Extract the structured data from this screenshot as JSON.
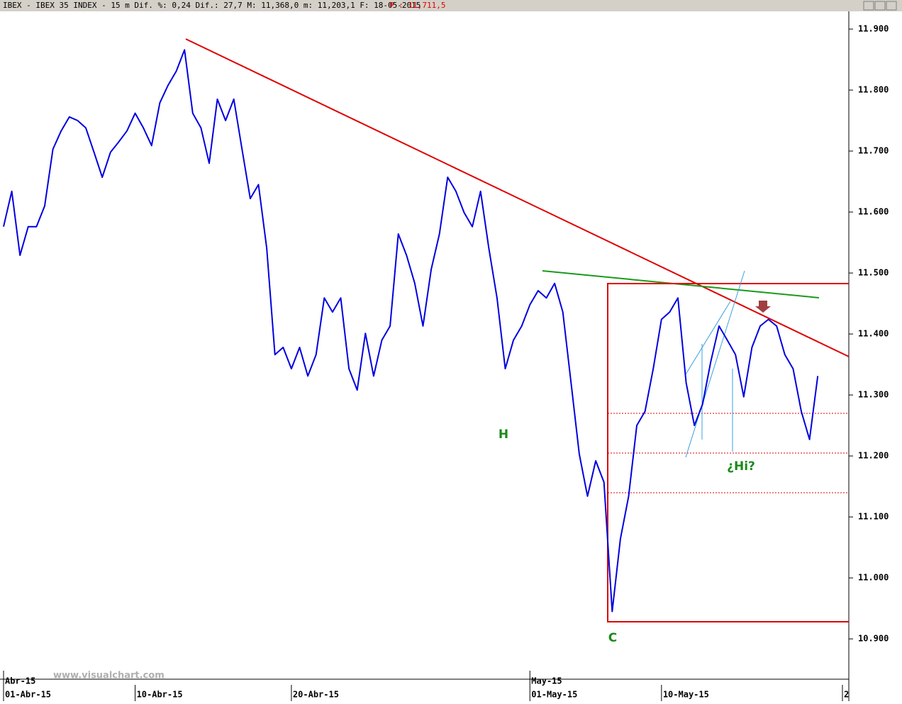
{
  "chart_data": {
    "type": "line",
    "header": "IBEX - IBEX 35 INDEX -  15 m Dif. %: 0,24 Dif.: 27,7 M: 11,368,0 m: 11,203,1 F: 18-05-2015",
    "header_price": "P : 11,711,5",
    "watermark": "www.visualchart.com",
    "annotations": [
      "H",
      "C",
      "¿Hi?"
    ],
    "categories": [
      "01-Abr-15",
      null,
      null,
      null,
      null,
      null,
      null,
      null,
      null,
      null,
      null,
      null,
      null,
      null,
      null,
      null,
      "10-Abr-15",
      null,
      null,
      null,
      null,
      null,
      null,
      null,
      null,
      null,
      null,
      null,
      null,
      null,
      null,
      null,
      null,
      null,
      null,
      "20-Abr-15",
      null,
      null,
      null,
      null,
      null,
      null,
      null,
      null,
      null,
      null,
      null,
      null,
      null,
      null,
      null,
      null,
      null,
      null,
      null,
      null,
      null,
      null,
      null,
      null,
      null,
      null,
      null,
      null,
      "01-May-15",
      null,
      null,
      null,
      null,
      null,
      null,
      null,
      null,
      null,
      null,
      null,
      null,
      null,
      null,
      null,
      "10-May-15",
      null,
      null,
      null,
      null,
      null,
      null,
      null,
      null,
      null,
      null,
      null,
      null,
      null,
      null,
      null,
      null,
      null,
      null,
      null,
      null,
      null,
      "2"
    ],
    "month_labels": [
      "Abr-15",
      null,
      null,
      null,
      null,
      null,
      null,
      null,
      null,
      null,
      null,
      null,
      null,
      null,
      null,
      null,
      null,
      null,
      null,
      null,
      null,
      null,
      null,
      null,
      null,
      null,
      null,
      null,
      null,
      null,
      null,
      null,
      null,
      null,
      null,
      null,
      null,
      null,
      null,
      null,
      null,
      null,
      null,
      null,
      null,
      null,
      null,
      null,
      null,
      null,
      null,
      null,
      null,
      null,
      null,
      null,
      null,
      null,
      null,
      null,
      null,
      null,
      null,
      null,
      "May-15",
      null,
      null,
      null,
      null,
      null,
      null,
      null,
      null,
      null,
      null,
      null,
      null,
      null,
      null,
      null,
      null,
      null,
      null,
      null,
      null,
      null,
      null,
      null,
      null,
      null,
      null,
      null,
      null,
      null,
      null,
      null,
      null,
      null,
      null,
      null,
      null,
      null,
      null
    ],
    "series": [
      {
        "name": "IBEX 35",
        "color": "#0000e0",
        "values": [
          11576,
          11634,
          11529,
          11576,
          11576,
          11610,
          11703,
          11733,
          11756,
          11750,
          11738,
          11698,
          11657,
          11698,
          11715,
          11733,
          11762,
          11738,
          11709,
          11779,
          11808,
          11831,
          11866,
          11762,
          11738,
          11680,
          11785,
          11750,
          11785,
          11703,
          11622,
          11645,
          11541,
          11366,
          11378,
          11343,
          11378,
          11331,
          11366,
          11459,
          11436,
          11459,
          11343,
          11308,
          11401,
          11331,
          11390,
          11413,
          11564,
          11529,
          11483,
          11413,
          11506,
          11564,
          11657,
          11634,
          11599,
          11576,
          11634,
          11541,
          11459,
          11343,
          11390,
          11413,
          11448,
          11471,
          11459,
          11483,
          11436,
          11320,
          11203,
          11134,
          11192,
          11157,
          10945,
          11064,
          11134,
          11250,
          11273,
          11343,
          11424,
          11436,
          11459,
          11320,
          11250,
          11285,
          11355,
          11413,
          11390,
          11366,
          11297,
          11378,
          11413,
          11424,
          11413,
          11366,
          11343,
          11273,
          11227,
          11331,
          null,
          null,
          null
        ]
      }
    ],
    "ylim": [
      10831.6,
      11947.7
    ],
    "yticks": [
      {
        "value": 10900,
        "label": "10.900"
      },
      {
        "value": 11000,
        "label": "11.000"
      },
      {
        "value": 11100,
        "label": "11.100"
      },
      {
        "value": 11200,
        "label": "11.200"
      },
      {
        "value": 11300,
        "label": "11.300"
      },
      {
        "value": 11400,
        "label": "11.400"
      },
      {
        "value": 11500,
        "label": "11.500"
      },
      {
        "value": 11600,
        "label": "11.600"
      },
      {
        "value": 11700,
        "label": "11.700"
      },
      {
        "value": 11800,
        "label": "11.800"
      },
      {
        "value": 11900,
        "label": "11.900"
      }
    ]
  }
}
